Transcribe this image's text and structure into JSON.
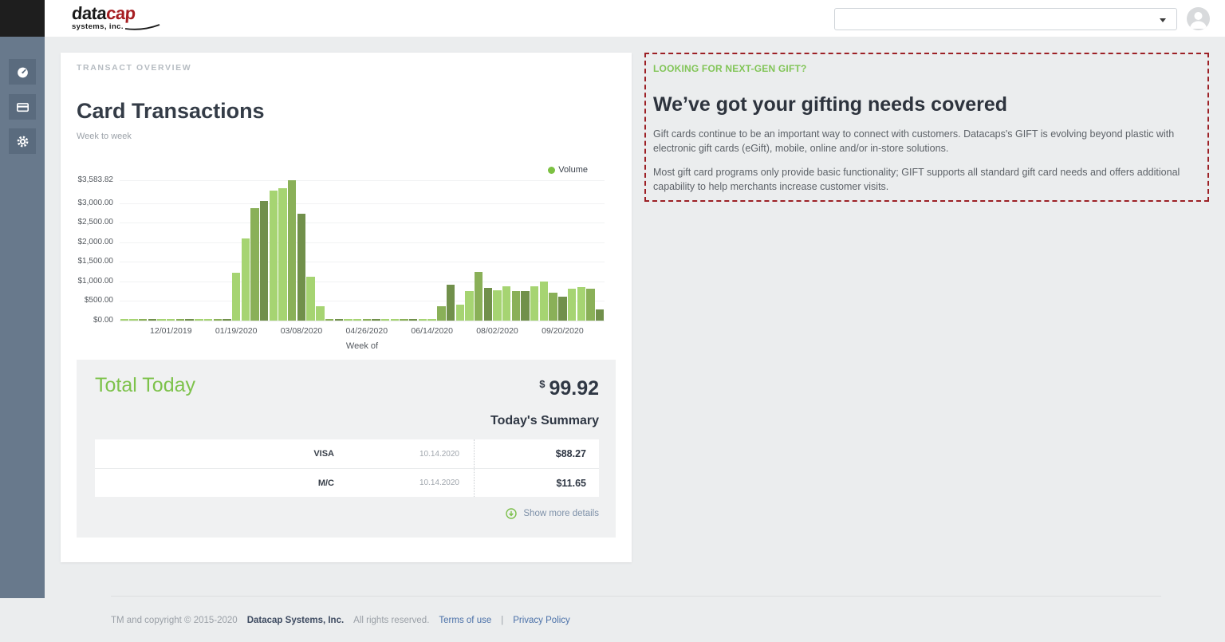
{
  "colors": {
    "accent_green": "#7dc24b",
    "legend_green": "#7cc142",
    "promo_border_red": "#9c2025",
    "logo_red": "#a61e22",
    "sidebar_gray": "#68798c"
  },
  "header": {
    "logo": {
      "word_black": "data",
      "word_red": "cap",
      "subtitle": "systems, inc."
    },
    "dropdown_value": ""
  },
  "sidebar": {
    "items": [
      {
        "icon": "dashboard-icon"
      },
      {
        "icon": "credit-card-icon"
      },
      {
        "icon": "gear-icon"
      }
    ]
  },
  "overview": {
    "eyebrow": "TRANSACT OVERVIEW",
    "title": "Card Transactions",
    "subtitle": "Week to week",
    "legend_label": "Volume"
  },
  "total_today": {
    "title": "Total Today",
    "currency_symbol": "$",
    "amount": "99.92",
    "summary_title": "Today's Summary",
    "rows": [
      {
        "name": "VISA",
        "date": "10.14.2020",
        "amount": "$88.27"
      },
      {
        "name": "M/C",
        "date": "10.14.2020",
        "amount": "$11.65"
      }
    ],
    "show_more_label": "Show more details"
  },
  "promo": {
    "eyebrow": "LOOKING FOR NEXT-GEN GIFT?",
    "title": "We’ve got your gifting needs covered",
    "paragraphs": [
      "Gift cards continue to be an important way to connect with customers. Datacaps's GIFT is evolving beyond plastic with electronic gift cards (eGift), mobile, online and/or in-store solutions.",
      "Most gift card programs only provide basic functionality; GIFT supports all standard gift card needs and offers additional capability to help merchants increase customer visits."
    ]
  },
  "footer": {
    "copyright": "TM and copyright © 2015-2020",
    "company": "Datacap Systems, Inc.",
    "rights": "All rights reserved.",
    "terms_label": "Terms of use",
    "separator": "|",
    "privacy_label": "Privacy Policy"
  },
  "chart_data": {
    "type": "bar",
    "title": "Card Transactions",
    "subtitle": "Week to week",
    "series_name": "Volume",
    "xlabel": "Week of",
    "grid": true,
    "legend_position": "top-right",
    "ylim": [
      0,
      3583.82
    ],
    "y_tick_values": [
      0,
      500,
      1000,
      1500,
      2000,
      2500,
      3000,
      3583.82
    ],
    "y_tick_labels": [
      "$0.00",
      "$500.00",
      "$1,000.00",
      "$1,500.00",
      "$2,000.00",
      "$2,500.00",
      "$3,000.00",
      "$3,583.82"
    ],
    "x_tick_labels": [
      "12/01/2019",
      "01/19/2020",
      "03/08/2020",
      "04/26/2020",
      "06/14/2020",
      "08/02/2020",
      "09/20/2020"
    ],
    "x_tick_indices": [
      5,
      12,
      19,
      26,
      33,
      40,
      47
    ],
    "bar_colors": {
      "L": "#a6d472",
      "M": "#8ab058",
      "D": "#71904b"
    },
    "values": [
      6,
      4,
      9,
      5,
      12,
      7,
      4,
      10,
      6,
      14,
      8,
      5,
      1220,
      2100,
      2880,
      3060,
      3310,
      3380,
      3583.82,
      2720,
      1125,
      360,
      9,
      5,
      12,
      6,
      10,
      4,
      8,
      13,
      6,
      9,
      5,
      11,
      360,
      920,
      415,
      755,
      1250,
      835,
      775,
      870,
      760,
      745,
      870,
      990,
      705,
      615,
      810,
      850,
      810,
      280
    ],
    "shades": [
      "L",
      "L",
      "M",
      "D",
      "L",
      "L",
      "M",
      "D",
      "L",
      "L",
      "M",
      "D",
      "L",
      "L",
      "M",
      "D",
      "L",
      "L",
      "M",
      "D",
      "L",
      "L",
      "M",
      "D",
      "L",
      "L",
      "M",
      "D",
      "L",
      "L",
      "M",
      "D",
      "L",
      "L",
      "M",
      "D",
      "L",
      "L",
      "M",
      "D",
      "L",
      "L",
      "M",
      "D",
      "L",
      "L",
      "M",
      "D",
      "L",
      "L",
      "M",
      "D"
    ]
  }
}
